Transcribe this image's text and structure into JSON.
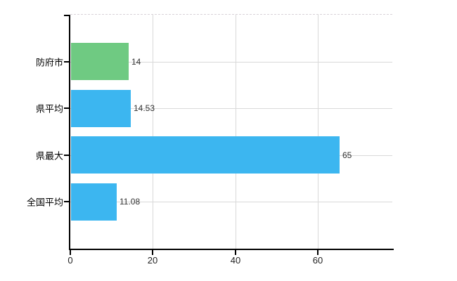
{
  "chart_data": {
    "type": "bar",
    "orientation": "horizontal",
    "title": "",
    "xlabel": "",
    "ylabel": "",
    "categories": [
      "防府市",
      "県平均",
      "県最大",
      "全国平均"
    ],
    "values": [
      14,
      14.53,
      65,
      11.08
    ],
    "value_labels": [
      "14",
      "14.53",
      "65",
      "11.08"
    ],
    "bar_colors": [
      "#6fca82",
      "#3cb6f0",
      "#3cb6f0",
      "#3cb6f0"
    ],
    "x_tick_values": [
      0,
      20,
      40,
      60
    ],
    "x_tick_labels": [
      "0",
      "20",
      "40",
      "60"
    ],
    "xlim": [
      0,
      78
    ],
    "grid": true,
    "legend_position": "none"
  },
  "colors": {
    "background": "#ffffff",
    "grid": "#d9d9d9",
    "axis": "#000000",
    "category_label": "#000000",
    "value_label": "#333333",
    "tick_label": "#222222",
    "bar_green": "#6fca82",
    "bar_blue": "#3cb6f0"
  }
}
